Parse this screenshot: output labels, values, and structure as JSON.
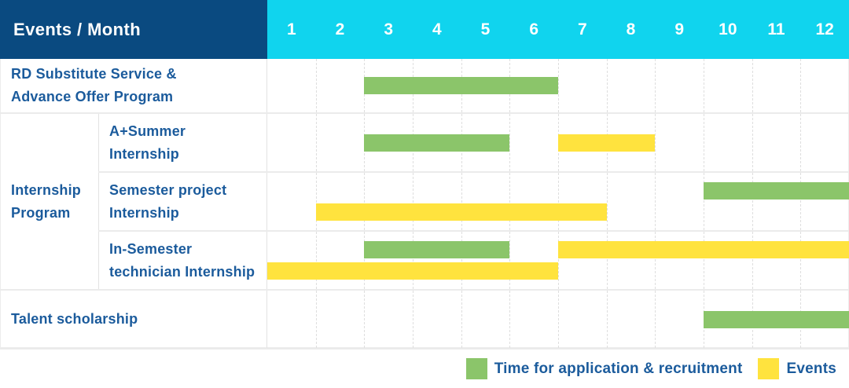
{
  "table": {
    "header": {
      "title": "Events / Month",
      "months": [
        "1",
        "2",
        "3",
        "4",
        "5",
        "6",
        "7",
        "8",
        "9",
        "10",
        "11",
        "12"
      ]
    },
    "colors": {
      "header_navy": "#0a4a80",
      "header_cyan": "#10d4ee",
      "green": "#8bc56a",
      "yellow": "#ffe33e",
      "label_text": "#1b5b9c",
      "grid_line": "#dedede"
    },
    "legend_colors": {
      "green": "#8bc56a",
      "yellow": "#ffe33e"
    },
    "group": {
      "label_lines": [
        "Internship",
        "Program"
      ]
    },
    "rows": [
      {
        "id": "rd-substitute",
        "label_lines": [
          "RD Substitute Service &",
          "Advance Offer Program"
        ],
        "bars": [
          {
            "color": "green",
            "start_month": 3,
            "end_month": 6,
            "track": "single"
          }
        ]
      },
      {
        "id": "a-plus-summer",
        "label_lines": [
          "A+Summer",
          "Internship"
        ],
        "bars": [
          {
            "color": "green",
            "start_month": 3,
            "end_month": 5,
            "track": "single"
          },
          {
            "color": "yellow",
            "start_month": 7,
            "end_month": 8,
            "track": "single"
          }
        ]
      },
      {
        "id": "semester-project",
        "label_lines": [
          "Semester project",
          "Internship"
        ],
        "bars": [
          {
            "color": "green",
            "start_month": 10,
            "end_month": 12,
            "track": "top"
          },
          {
            "color": "yellow",
            "start_month": 2,
            "end_month": 7,
            "track": "bottom"
          }
        ]
      },
      {
        "id": "in-semester-technician",
        "label_lines": [
          "In-Semester",
          "technician Internship"
        ],
        "bars": [
          {
            "color": "green",
            "start_month": 3,
            "end_month": 5,
            "track": "top"
          },
          {
            "color": "yellow",
            "start_month": 7,
            "end_month": 12,
            "track": "top"
          },
          {
            "color": "yellow",
            "start_month": 1,
            "end_month": 6,
            "track": "bottom"
          }
        ]
      },
      {
        "id": "talent-scholarship",
        "label_lines": [
          "Talent scholarship"
        ],
        "bars": [
          {
            "color": "green",
            "start_month": 10,
            "end_month": 12,
            "track": "single"
          }
        ]
      }
    ]
  },
  "legend": {
    "items": [
      {
        "color": "green",
        "label": "Time for application & recruitment"
      },
      {
        "color": "yellow",
        "label": "Events"
      }
    ]
  },
  "chart_data": {
    "type": "table",
    "title": "Events / Month",
    "x": {
      "label": "Month",
      "ticks": [
        1,
        2,
        3,
        4,
        5,
        6,
        7,
        8,
        9,
        10,
        11,
        12
      ]
    },
    "legend": {
      "green": "Time for application & recruitment",
      "yellow": "Events"
    },
    "series": [
      {
        "name": "RD Substitute Service & Advance Offer Program",
        "group": null,
        "spans": [
          {
            "type": "Time for application & recruitment",
            "months": [
              3,
              6
            ]
          }
        ]
      },
      {
        "name": "A+Summer Internship",
        "group": "Internship Program",
        "spans": [
          {
            "type": "Time for application & recruitment",
            "months": [
              3,
              5
            ]
          },
          {
            "type": "Events",
            "months": [
              7,
              8
            ]
          }
        ]
      },
      {
        "name": "Semester project Internship",
        "group": "Internship Program",
        "spans": [
          {
            "type": "Time for application & recruitment",
            "months": [
              10,
              12
            ]
          },
          {
            "type": "Events",
            "months": [
              2,
              7
            ]
          }
        ]
      },
      {
        "name": "In-Semester technician Internship",
        "group": "Internship Program",
        "spans": [
          {
            "type": "Time for application & recruitment",
            "months": [
              3,
              5
            ]
          },
          {
            "type": "Events",
            "months": [
              7,
              12
            ]
          },
          {
            "type": "Events",
            "months": [
              1,
              6
            ]
          }
        ]
      },
      {
        "name": "Talent scholarship",
        "group": null,
        "spans": [
          {
            "type": "Time for application & recruitment",
            "months": [
              10,
              12
            ]
          }
        ]
      }
    ]
  }
}
